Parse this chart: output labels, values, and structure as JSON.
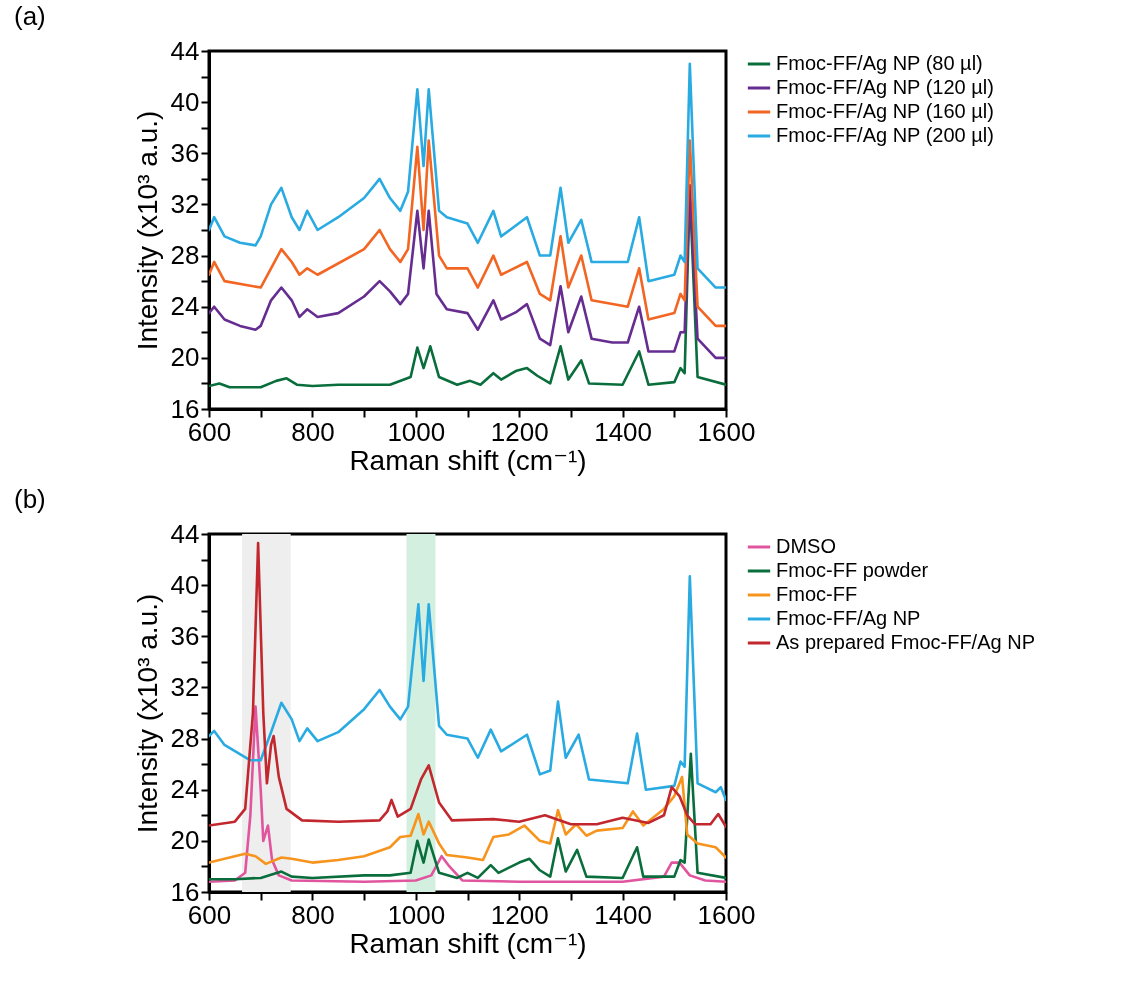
{
  "chart_data": [
    {
      "type": "line",
      "title": "(a)",
      "xlabel": "Raman shift (cm⁻¹)",
      "ylabel": "Intensity (x10³ a.u.)",
      "xlim": [
        600,
        1600
      ],
      "ylim": [
        16,
        44
      ],
      "xticks": [
        600,
        {
          "value": 700,
          "label": null
        },
        800,
        {
          "value": 900,
          "label": null
        },
        1000,
        {
          "value": 1100,
          "label": null
        },
        1200,
        {
          "value": 1300,
          "label": null
        },
        1400,
        {
          "value": 1500,
          "label": null
        },
        1600
      ],
      "yticks": [
        16,
        {
          "value": 18,
          "label": null
        },
        20,
        {
          "value": 22,
          "label": null
        },
        24,
        {
          "value": 26,
          "label": null
        },
        28,
        {
          "value": 30,
          "label": null
        },
        32,
        {
          "value": 34,
          "label": null
        },
        36,
        {
          "value": 38,
          "label": null
        },
        40,
        {
          "value": 42,
          "label": null
        },
        44
      ],
      "legend": "right",
      "series": [
        {
          "name": "Fmoc-FF/Ag NP (80 µl)",
          "color": "#0a6e3c",
          "x": [
            600,
            620,
            640,
            700,
            730,
            750,
            770,
            800,
            850,
            900,
            950,
            990,
            1003,
            1015,
            1028,
            1045,
            1080,
            1105,
            1125,
            1150,
            1165,
            1195,
            1215,
            1235,
            1260,
            1280,
            1295,
            1320,
            1335,
            1400,
            1432,
            1450,
            1500,
            1512,
            1520,
            1530,
            1545,
            1600
          ],
          "values": [
            17.8,
            18,
            17.7,
            17.7,
            18.2,
            18.4,
            17.9,
            17.8,
            17.9,
            17.9,
            17.9,
            18.5,
            20.8,
            19.2,
            20.9,
            18.5,
            17.9,
            18.2,
            17.9,
            18.8,
            18.3,
            19,
            19.2,
            18.6,
            18,
            20.9,
            18.3,
            19.8,
            18,
            17.9,
            20.5,
            17.9,
            18.1,
            19.2,
            18.8,
            33,
            18.5,
            17.9
          ]
        },
        {
          "name": "Fmoc-FF/Ag NP (120 µl)",
          "color": "#662d91",
          "x": [
            600,
            610,
            630,
            660,
            690,
            700,
            720,
            740,
            760,
            775,
            790,
            810,
            850,
            900,
            930,
            950,
            970,
            985,
            1003,
            1015,
            1025,
            1040,
            1060,
            1100,
            1120,
            1150,
            1165,
            1195,
            1215,
            1240,
            1260,
            1280,
            1295,
            1320,
            1340,
            1380,
            1410,
            1432,
            1450,
            1500,
            1512,
            1520,
            1530,
            1545,
            1580,
            1600
          ],
          "values": [
            23.5,
            24,
            23,
            22.5,
            22.2,
            22.5,
            24.5,
            25.5,
            24.5,
            23.2,
            23.8,
            23.2,
            23.5,
            24.8,
            26,
            25.2,
            24.2,
            25,
            31.5,
            27,
            31.5,
            25,
            23.8,
            23.5,
            22.2,
            24.5,
            23,
            23.6,
            24.2,
            21.5,
            21,
            25.6,
            22,
            24.8,
            21.5,
            21.2,
            21.2,
            24,
            20.5,
            20.5,
            22,
            22,
            33.5,
            21.5,
            20,
            20
          ]
        },
        {
          "name": "Fmoc-FF/Ag NP (160 µl)",
          "color": "#f26522",
          "x": [
            600,
            610,
            630,
            700,
            720,
            740,
            760,
            775,
            790,
            810,
            900,
            930,
            950,
            970,
            985,
            1003,
            1015,
            1025,
            1045,
            1060,
            1100,
            1120,
            1150,
            1165,
            1215,
            1240,
            1260,
            1280,
            1295,
            1320,
            1340,
            1410,
            1432,
            1450,
            1500,
            1512,
            1520,
            1530,
            1545,
            1580,
            1600
          ],
          "values": [
            26.5,
            27.5,
            26,
            25.5,
            27,
            28.5,
            27.5,
            26.5,
            27,
            26.5,
            28.5,
            30,
            28.5,
            27.5,
            28.5,
            36.5,
            30,
            37,
            28,
            27,
            27,
            25.5,
            28,
            26.5,
            27.5,
            25,
            24.5,
            29.5,
            25.5,
            28,
            24.5,
            24,
            27,
            23,
            23.5,
            25,
            24.5,
            37,
            24,
            22.5,
            22.5
          ]
        },
        {
          "name": "Fmoc-FF/Ag NP (200 µl)",
          "color": "#29abe2",
          "x": [
            600,
            610,
            630,
            660,
            690,
            700,
            720,
            740,
            760,
            775,
            790,
            810,
            850,
            900,
            930,
            950,
            970,
            985,
            1003,
            1015,
            1025,
            1045,
            1060,
            1100,
            1120,
            1150,
            1165,
            1215,
            1240,
            1260,
            1280,
            1295,
            1320,
            1340,
            1410,
            1432,
            1450,
            1500,
            1512,
            1520,
            1530,
            1545,
            1580,
            1600
          ],
          "values": [
            30,
            31,
            29.5,
            29,
            28.8,
            29.5,
            32,
            33.3,
            31,
            30,
            31.5,
            30,
            31,
            32.5,
            34,
            32.5,
            31.5,
            33,
            41,
            35,
            41,
            31.5,
            31,
            30.5,
            29,
            31.5,
            29.5,
            31,
            28,
            28,
            33.3,
            29,
            30.8,
            27.5,
            27.5,
            31,
            26,
            26.5,
            28,
            27.5,
            43,
            27,
            25.5,
            25.5
          ]
        }
      ]
    },
    {
      "type": "line",
      "title": "(b)",
      "xlabel": "Raman shift (cm⁻¹)",
      "ylabel": "Intensity (x10³ a.u.)",
      "xlim": [
        600,
        1600
      ],
      "ylim": [
        16,
        44
      ],
      "xticks": [
        600,
        {
          "value": 700,
          "label": null
        },
        800,
        {
          "value": 900,
          "label": null
        },
        1000,
        {
          "value": 1100,
          "label": null
        },
        1200,
        {
          "value": 1300,
          "label": null
        },
        1400,
        {
          "value": 1500,
          "label": null
        },
        1600
      ],
      "yticks": [
        16,
        {
          "value": 18,
          "label": null
        },
        20,
        {
          "value": 22,
          "label": null
        },
        24,
        {
          "value": 26,
          "label": null
        },
        28,
        {
          "value": 30,
          "label": null
        },
        32,
        {
          "value": 34,
          "label": null
        },
        36,
        {
          "value": 38,
          "label": null
        },
        40,
        {
          "value": 42,
          "label": null
        },
        44
      ],
      "legend": "right",
      "bands": [
        {
          "axis": "x",
          "from": 664,
          "to": 758,
          "color": "#eeeeee"
        },
        {
          "axis": "x",
          "from": 982,
          "to": 1038,
          "color": "#d3efe0"
        }
      ],
      "series": [
        {
          "name": "DMSO",
          "color": "#e0559e",
          "x": [
            600,
            650,
            670,
            680,
            690,
            700,
            705,
            714,
            722,
            735,
            760,
            900,
            1000,
            1030,
            1050,
            1065,
            1090,
            1200,
            1400,
            1480,
            1495,
            1510,
            1530,
            1560,
            1600
          ],
          "values": [
            16.8,
            16.9,
            17.5,
            22,
            30.5,
            24,
            20,
            21.2,
            18.5,
            17.3,
            16.9,
            16.8,
            16.9,
            17.3,
            18.8,
            18,
            16.9,
            16.8,
            16.8,
            17.2,
            18.3,
            18.3,
            17.3,
            16.9,
            16.8
          ]
        },
        {
          "name": "Fmoc-FF powder",
          "color": "#0a6e3c",
          "x": [
            600,
            650,
            700,
            740,
            760,
            800,
            900,
            950,
            990,
            1003,
            1015,
            1025,
            1045,
            1080,
            1100,
            1120,
            1145,
            1160,
            1200,
            1220,
            1240,
            1260,
            1275,
            1290,
            1312,
            1330,
            1400,
            1428,
            1440,
            1500,
            1512,
            1520,
            1532,
            1545,
            1600
          ],
          "values": [
            17,
            17,
            17.1,
            17.6,
            17.2,
            17.1,
            17.3,
            17.3,
            17.5,
            20,
            18.3,
            20.1,
            17.5,
            17.1,
            17.5,
            17.1,
            18.1,
            17.5,
            18.3,
            18.6,
            17.7,
            17.2,
            20.2,
            17.6,
            19.3,
            17.2,
            17.1,
            19.5,
            17.2,
            17.2,
            18.5,
            18.3,
            26.8,
            17.5,
            17.1
          ]
        },
        {
          "name": "Fmoc-FF",
          "color": "#f7941d",
          "x": [
            600,
            650,
            670,
            690,
            710,
            740,
            760,
            800,
            850,
            900,
            950,
            970,
            990,
            1005,
            1015,
            1025,
            1045,
            1060,
            1100,
            1130,
            1150,
            1180,
            1210,
            1240,
            1260,
            1275,
            1290,
            1310,
            1330,
            1350,
            1400,
            1420,
            1440,
            1480,
            1500,
            1515,
            1525,
            1545,
            1580,
            1600
          ],
          "values": [
            18.3,
            18.8,
            19,
            18.8,
            18.2,
            18.7,
            18.6,
            18.3,
            18.5,
            18.8,
            19.5,
            20.3,
            20.4,
            22.1,
            20.5,
            21.5,
            19.8,
            18.9,
            18.7,
            18.5,
            20.3,
            20.5,
            21.2,
            20,
            19.8,
            22.4,
            20.5,
            21.3,
            20.4,
            20.8,
            21,
            22.3,
            21.2,
            22.5,
            23.5,
            25,
            20.5,
            19.8,
            19.5,
            18.7
          ]
        },
        {
          "name": "Fmoc-FF/Ag NP",
          "color": "#29abe2",
          "x": [
            600,
            610,
            630,
            680,
            700,
            720,
            740,
            760,
            775,
            790,
            810,
            850,
            900,
            930,
            950,
            970,
            985,
            1005,
            1015,
            1025,
            1045,
            1060,
            1100,
            1120,
            1145,
            1165,
            1215,
            1240,
            1260,
            1275,
            1290,
            1315,
            1335,
            1410,
            1428,
            1445,
            1500,
            1512,
            1520,
            1530,
            1545,
            1580,
            1590,
            1600
          ],
          "values": [
            28.2,
            28.6,
            27.5,
            26.3,
            26.3,
            28.5,
            30.8,
            29.5,
            27.8,
            28.8,
            27.8,
            28.5,
            30.3,
            31.8,
            30.5,
            29.5,
            30.5,
            38.5,
            32.5,
            38.5,
            29,
            28.3,
            28,
            26.5,
            28.7,
            27,
            28.3,
            25.2,
            25.5,
            30.9,
            26.5,
            28.3,
            24.8,
            24.5,
            28.4,
            24,
            24.3,
            26.2,
            25.8,
            40.7,
            24.5,
            23.8,
            24.2,
            23.2
          ]
        },
        {
          "name": "As prepared Fmoc-FF/Ag NP",
          "color": "#c1272d",
          "x": [
            600,
            650,
            670,
            685,
            695,
            705,
            712,
            720,
            725,
            735,
            750,
            780,
            850,
            930,
            945,
            953,
            965,
            990,
            1010,
            1025,
            1045,
            1070,
            1150,
            1200,
            1250,
            1300,
            1350,
            1400,
            1450,
            1480,
            1495,
            1510,
            1525,
            1540,
            1570,
            1585,
            1600
          ],
          "values": [
            21.2,
            21.5,
            22.5,
            30,
            43.3,
            30,
            24.5,
            27.5,
            28.2,
            25,
            22.5,
            21.6,
            21.5,
            21.6,
            22.3,
            23.2,
            21.9,
            22.5,
            24.8,
            25.9,
            23,
            21.6,
            21.7,
            21.5,
            22,
            21.3,
            21.3,
            21.8,
            21.4,
            22,
            24.2,
            23.5,
            22,
            21.3,
            21.3,
            22.1,
            21.1
          ]
        }
      ]
    }
  ]
}
